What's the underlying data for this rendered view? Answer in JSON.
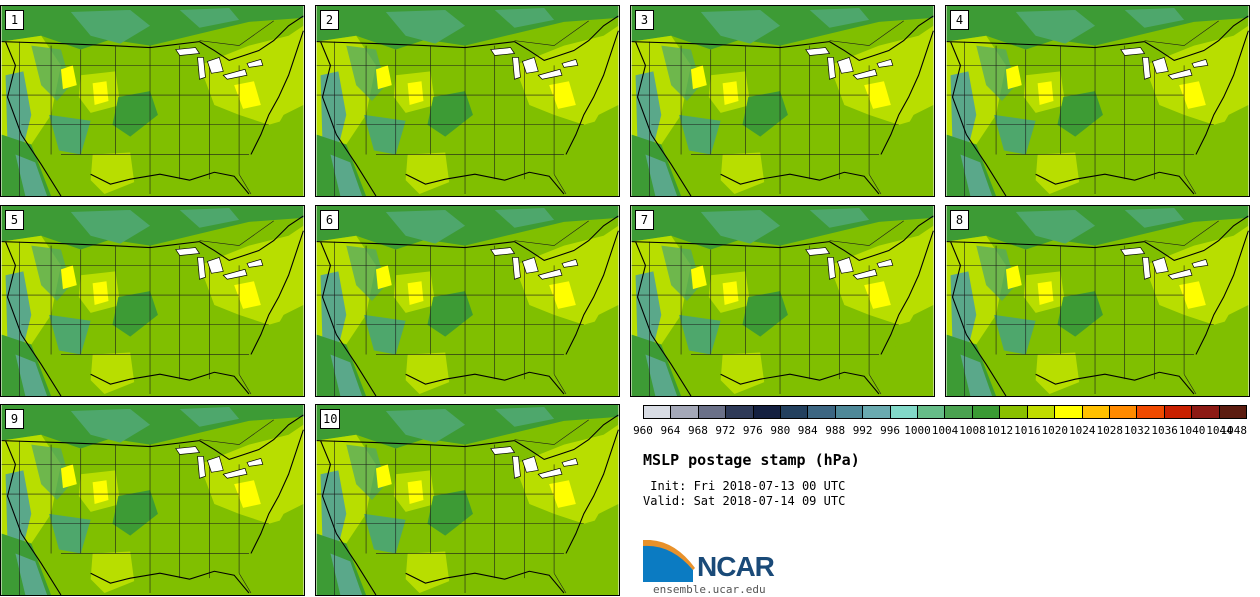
{
  "title": "MSLP postage stamp (hPa)",
  "init_text": " Init: Fri 2018-07-13 00 UTC",
  "valid_text": "Valid: Sat 2018-07-14 09 UTC",
  "logo_text": "NCAR",
  "website": "ensemble.ucar.edu",
  "members": [
    "1",
    "2",
    "3",
    "4",
    "5",
    "6",
    "7",
    "8",
    "9",
    "10"
  ],
  "colorbar": {
    "labels": [
      "960",
      "964",
      "968",
      "972",
      "976",
      "980",
      "984",
      "988",
      "992",
      "996",
      "1000",
      "1004",
      "1008",
      "1012",
      "1016",
      "1020",
      "1024",
      "1028",
      "1032",
      "1036",
      "1040",
      "1044",
      "1048"
    ],
    "colors": [
      "#d8dce4",
      "#a4a8b8",
      "#6a7088",
      "#2e3a58",
      "#142040",
      "#23405e",
      "#3c6682",
      "#4e8898",
      "#6aaab0",
      "#82d8c8",
      "#66bc88",
      "#4aa250",
      "#3a9a34",
      "#8ac000",
      "#c0dc00",
      "#ffff00",
      "#ffc000",
      "#ff8a00",
      "#f04a00",
      "#c82000",
      "#8c1a14",
      "#5c1c10"
    ]
  },
  "map_colors": {
    "ocean": "#80bf00",
    "land": "#80bf00",
    "low_green": "#3d9b35",
    "mid_green": "#4ea76c",
    "teal": "#5aa88a",
    "yellow_green": "#b8de00",
    "yellow": "#ffff00"
  }
}
